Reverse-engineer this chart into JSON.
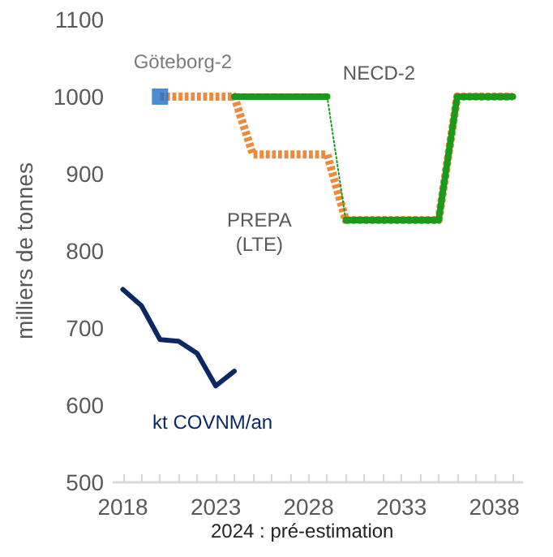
{
  "chart_data": {
    "type": "line",
    "ylabel": "milliers de tonnes",
    "annotations": [
      "2024 : pré-estimation"
    ],
    "xlim": [
      2017.5,
      2039.5
    ],
    "xticks": [
      2018,
      {
        "value": 2019,
        "label": null
      },
      {
        "value": 2020,
        "label": null
      },
      {
        "value": 2021,
        "label": null
      },
      {
        "value": 2022,
        "label": null
      },
      2023,
      {
        "value": 2024,
        "label": null
      },
      {
        "value": 2025,
        "label": null
      },
      {
        "value": 2026,
        "label": null
      },
      {
        "value": 2027,
        "label": null
      },
      2028,
      {
        "value": 2029,
        "label": null
      },
      {
        "value": 2030,
        "label": null
      },
      {
        "value": 2031,
        "label": null
      },
      {
        "value": 2032,
        "label": null
      },
      2033,
      {
        "value": 2034,
        "label": null
      },
      {
        "value": 2035,
        "label": null
      },
      {
        "value": 2036,
        "label": null
      },
      {
        "value": 2037,
        "label": null
      },
      2038,
      {
        "value": 2039,
        "label": null
      }
    ],
    "ylim": [
      500,
      1100
    ],
    "yticks": [
      500,
      600,
      700,
      800,
      900,
      1000,
      1100
    ],
    "series": [
      {
        "name": "kt COVNM/an",
        "color": "#0b2866",
        "line_style": "solid",
        "x": [
          2018,
          2019,
          2020,
          2021,
          2022,
          2023,
          2024
        ],
        "values": [
          750,
          729,
          685,
          683,
          667,
          625,
          644
        ]
      },
      {
        "name": "PREPA\n(LTE)",
        "color": "#ee8a3c",
        "line_style": "dashed",
        "x": [
          2020,
          2024,
          2025,
          2029,
          2030,
          2035,
          2036,
          2039
        ],
        "values": [
          1000,
          1000,
          925,
          925,
          840,
          840,
          1000,
          1000
        ]
      },
      {
        "name": "NECD-2",
        "color": "#1a9a1a",
        "line_style": "dashed",
        "x": [
          2024,
          2029
        ],
        "values": [
          1000,
          1000
        ]
      },
      {
        "color": "#1a9a1a",
        "line_style": "dotted",
        "x": [
          2029,
          2030
        ],
        "values": [
          1000,
          840
        ]
      },
      {
        "color": "#1a9a1a",
        "line_style": "dashed",
        "x": [
          2030,
          2035,
          2036,
          2039
        ],
        "values": [
          840,
          840,
          1000,
          1000
        ]
      },
      {
        "name": "Göteborg-2",
        "type": "scatter",
        "marker": "square",
        "color": "#1f6fc5",
        "x": [
          2020
        ],
        "values": [
          1000
        ]
      }
    ]
  }
}
